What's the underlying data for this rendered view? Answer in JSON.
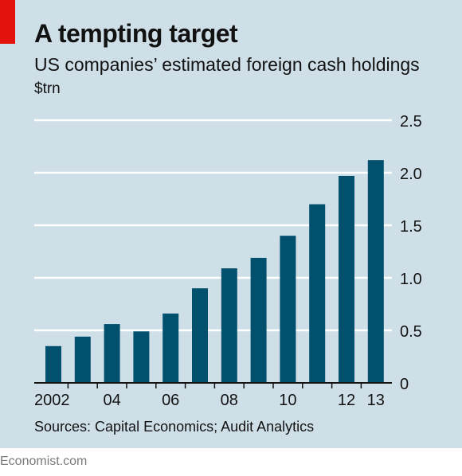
{
  "header": {
    "title": "A tempting target",
    "subtitle": "US companies’ estimated foreign cash holdings",
    "unit": "$trn"
  },
  "footer": {
    "source": "Sources: Capital Economics; Audit Analytics",
    "brand": "Economist.com"
  },
  "colors": {
    "bar": "#00506e",
    "background": "#cfdfe8",
    "accent": "#e3120b",
    "gridline": "#ffffff"
  },
  "chart_data": {
    "type": "bar",
    "title": "A tempting target",
    "subtitle": "US companies’ estimated foreign cash holdings",
    "ylabel": "$trn",
    "xlabel": "",
    "categories": [
      "2002",
      "2003",
      "2004",
      "2005",
      "2006",
      "2007",
      "2008",
      "2009",
      "2010",
      "2011",
      "2012",
      "2013"
    ],
    "x_tick_labels": [
      "2002",
      "",
      "04",
      "",
      "06",
      "",
      "08",
      "",
      "10",
      "",
      "12",
      "13"
    ],
    "values": [
      0.35,
      0.44,
      0.56,
      0.49,
      0.66,
      0.9,
      1.09,
      1.19,
      1.4,
      1.7,
      1.97,
      2.12
    ],
    "ylim": [
      0,
      2.5
    ],
    "yticks": [
      "0",
      "0.5",
      "1.0",
      "1.5",
      "2.0",
      "2.5"
    ],
    "grid": true,
    "y_axis_side": "right"
  }
}
